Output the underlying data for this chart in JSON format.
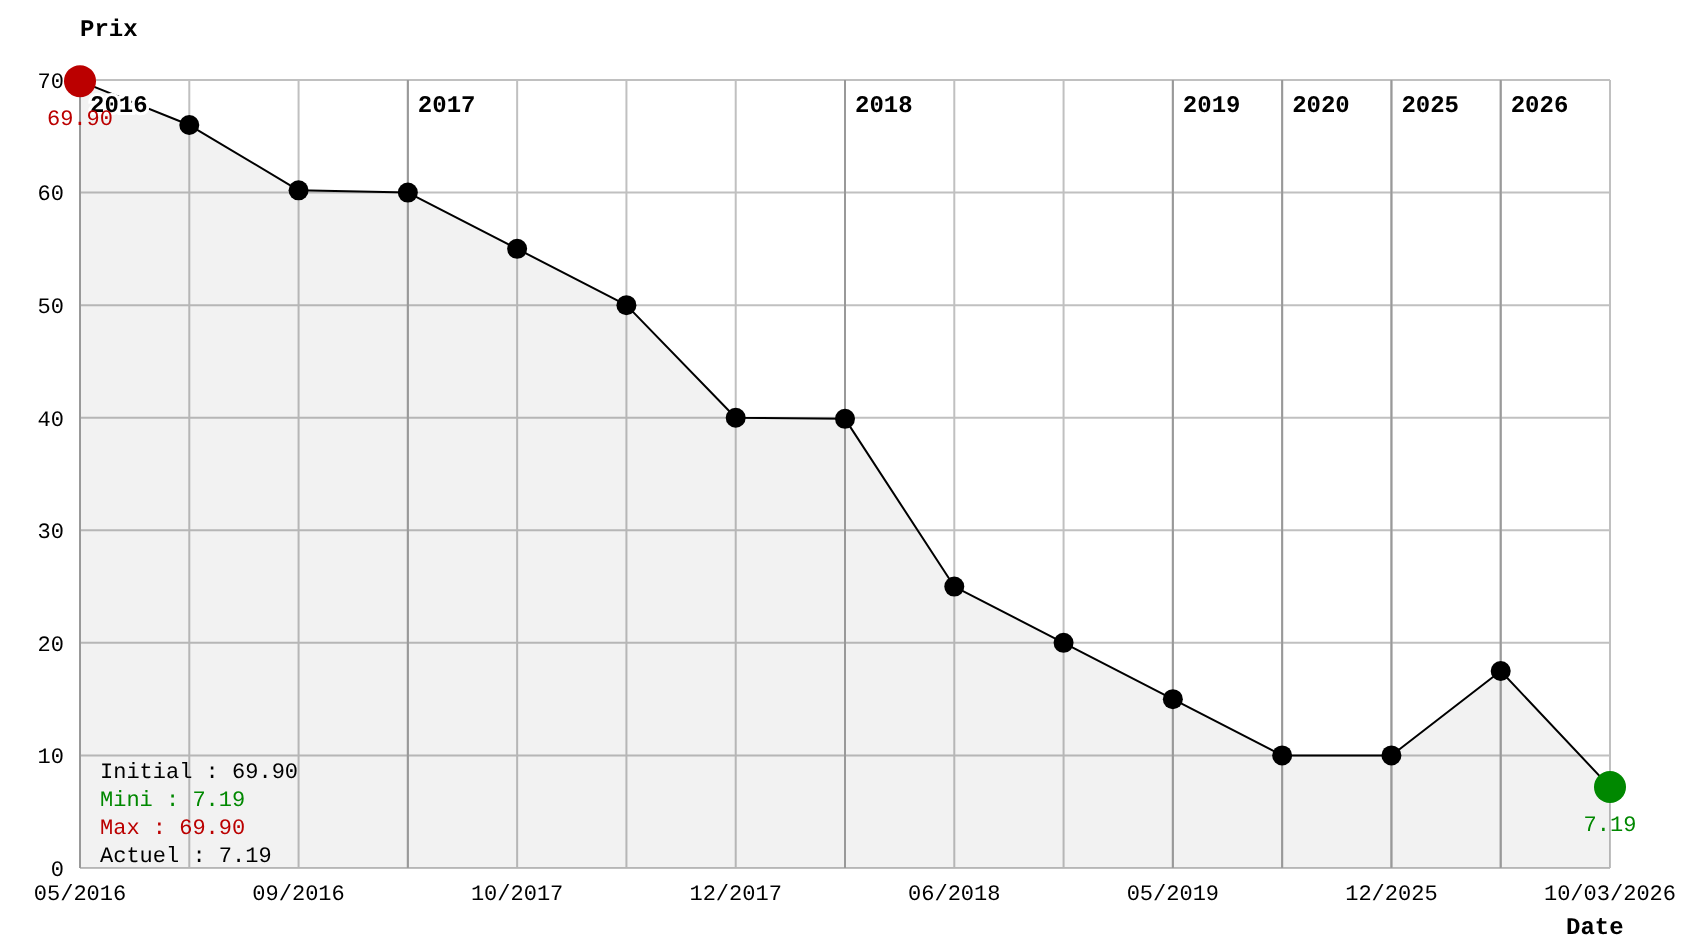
{
  "chart_data": {
    "type": "area",
    "xlabel": "Date",
    "ylabel": "Prix",
    "categories": [
      "05/2016",
      null,
      "09/2016",
      null,
      "10/2017",
      null,
      "12/2017",
      null,
      "06/2018",
      null,
      "05/2019",
      null,
      "12/2025",
      null,
      "10/03/2026"
    ],
    "series": [
      {
        "color": "#000000",
        "values": [
          69.9,
          66,
          60.2,
          60,
          55,
          50,
          40,
          39.9,
          25,
          20,
          15,
          10,
          10,
          17.5,
          7.19
        ],
        "colors": [
          "#bb0000",
          "#000000",
          "#000000",
          "#000000",
          "#000000",
          "#000000",
          "#000000",
          "#000000",
          "#000000",
          "#000000",
          "#000000",
          "#000000",
          "#000000",
          "#000000",
          "#008800"
        ],
        "value_labels": [
          "69.90",
          null,
          null,
          null,
          null,
          null,
          null,
          null,
          null,
          null,
          null,
          null,
          null,
          null,
          "7.19"
        ]
      }
    ],
    "ylim": [
      0,
      70
    ],
    "yticks": [
      0,
      10,
      20,
      30,
      40,
      50,
      60,
      70
    ],
    "grid": true,
    "marker": "circle",
    "annotations": [
      "Initial : 69.90",
      "Mini : 7.19",
      "Max : 69.90",
      "Actuel : 7.19",
      "2016",
      "2017",
      "2018",
      "2019",
      "2020",
      "2025",
      "2026"
    ]
  }
}
